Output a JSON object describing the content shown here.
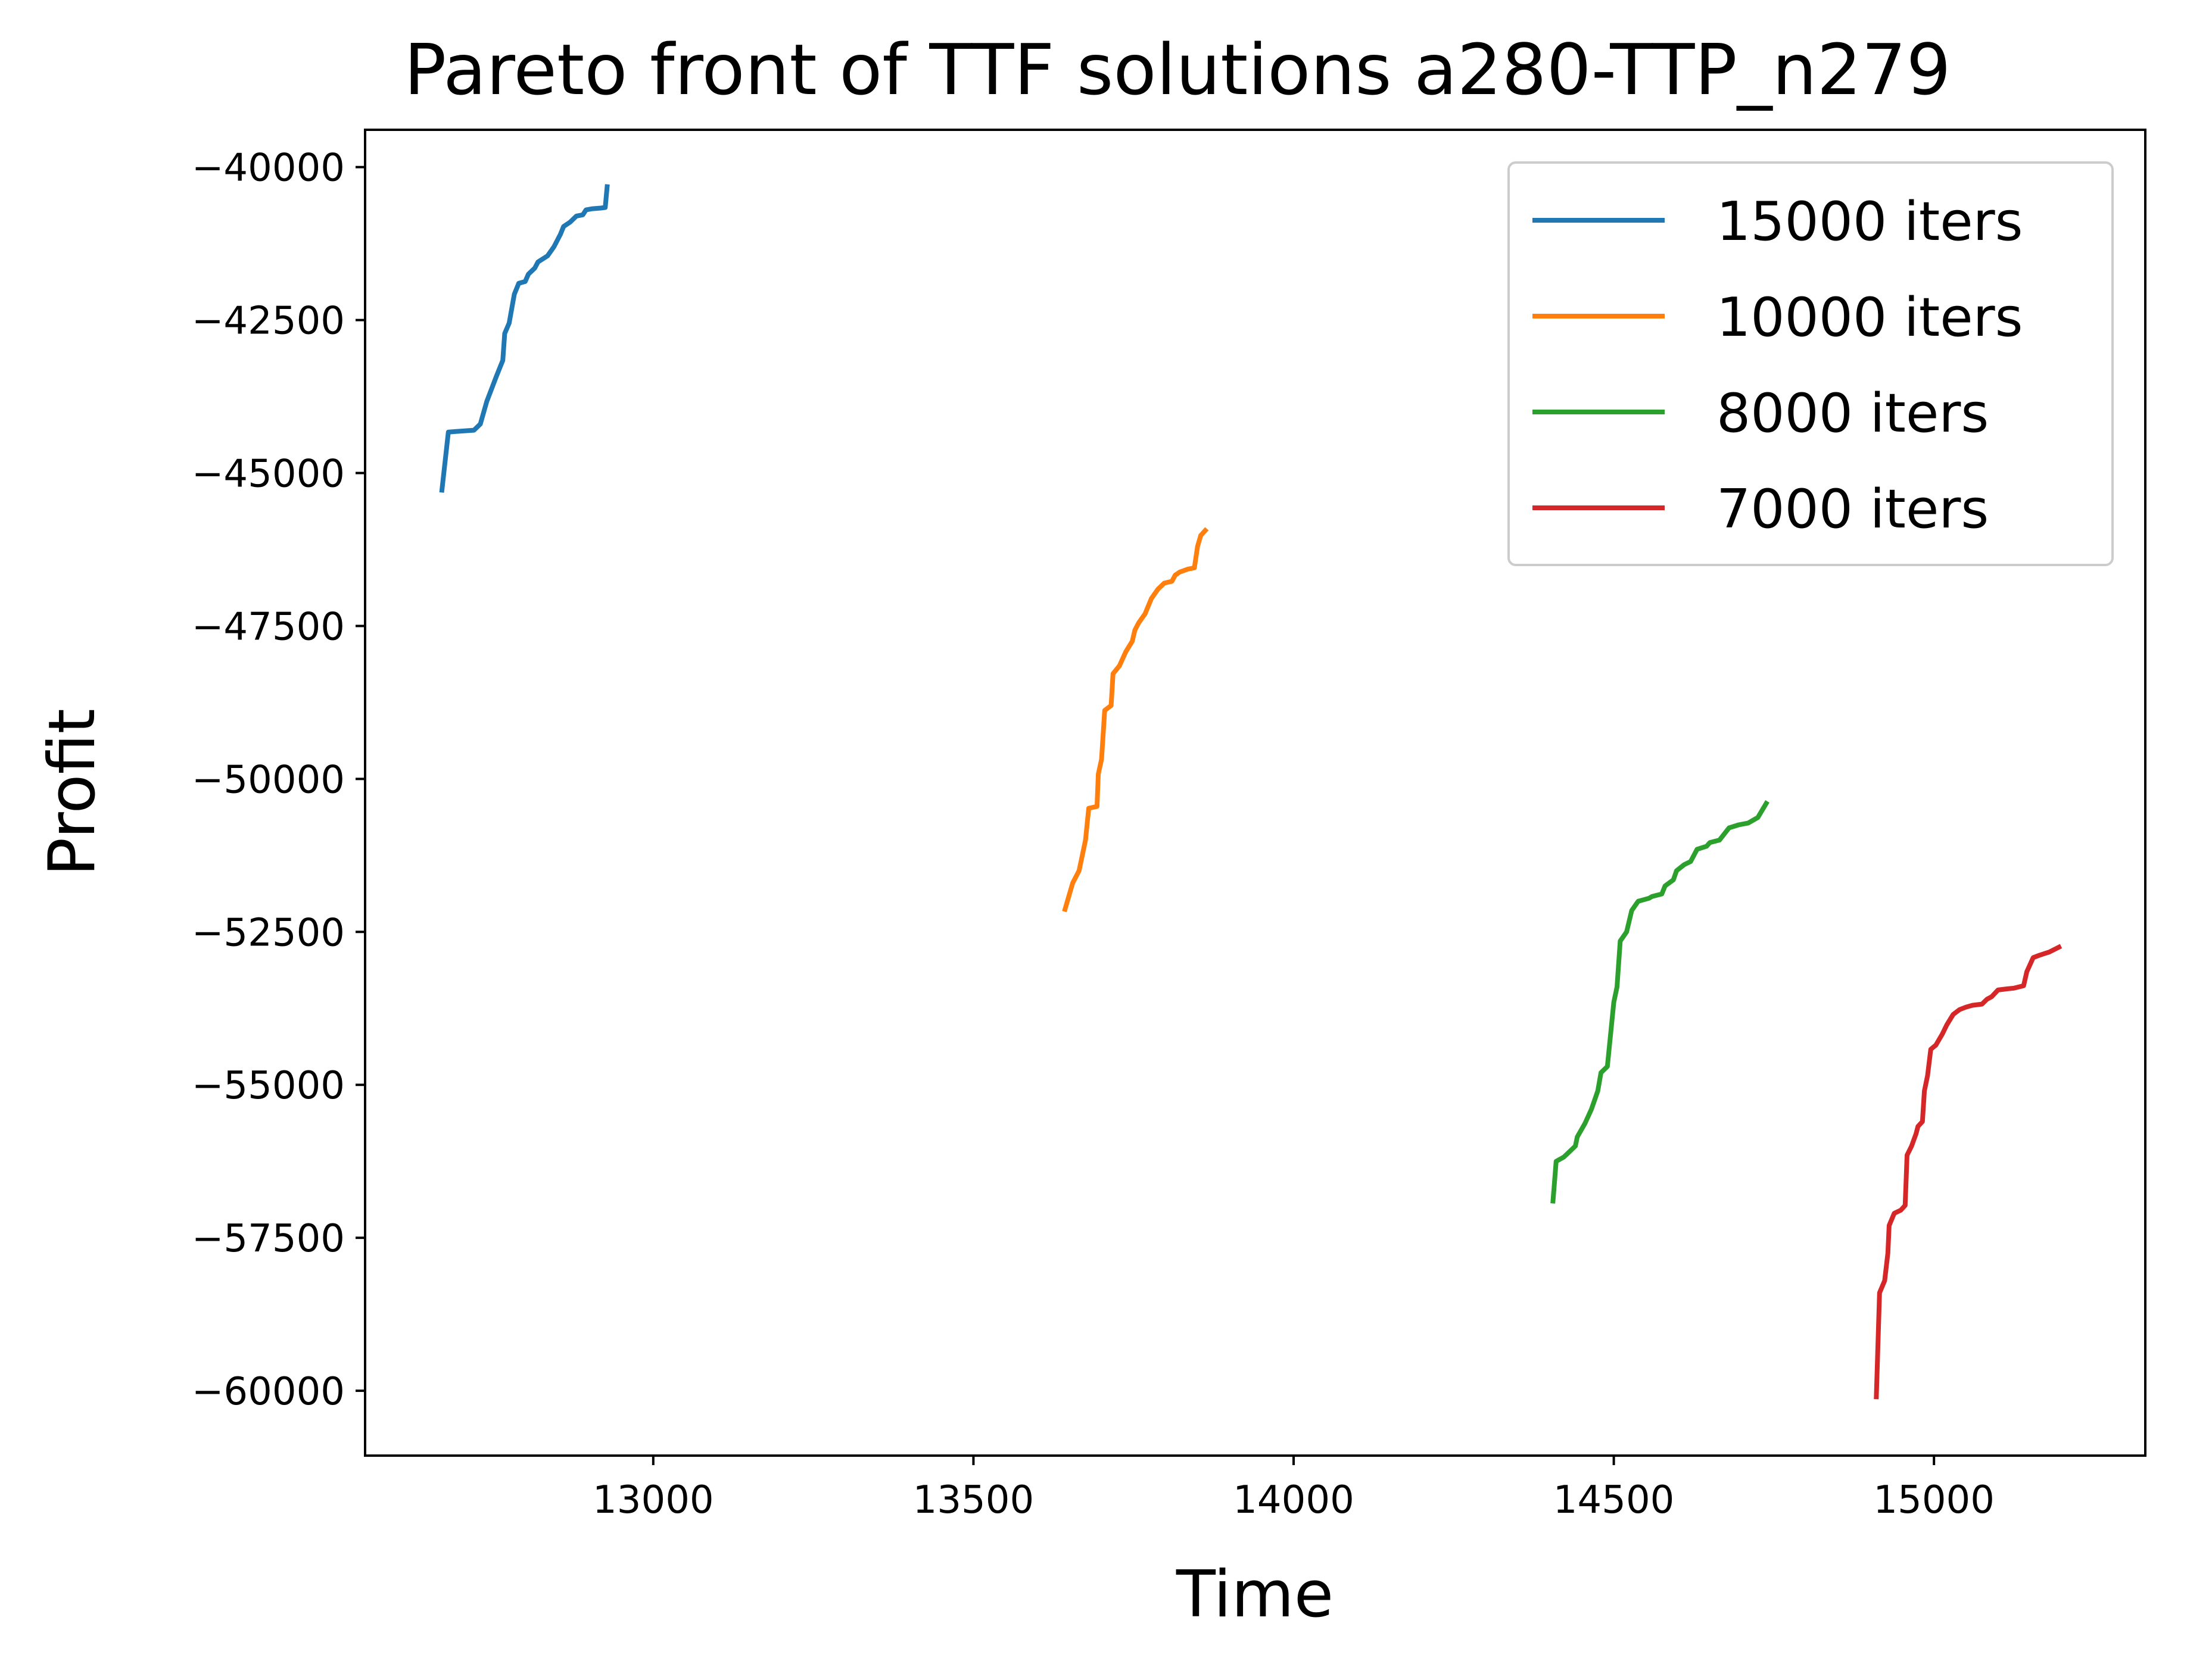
{
  "chart_data": {
    "type": "line",
    "title": "Pareto front of TTF solutions a280-TTP_n279",
    "xlabel": "Time",
    "ylabel": "Profit",
    "xlim": [
      12550,
      15330
    ],
    "ylim": [
      -61060,
      -39390
    ],
    "xticks": [
      13000,
      13500,
      14000,
      14500,
      15000
    ],
    "yticks": [
      -40000,
      -42500,
      -45000,
      -47500,
      -50000,
      -52500,
      -55000,
      -57500,
      -60000
    ],
    "grid": false,
    "legend_position": "top-right",
    "series": [
      {
        "name": "15000 iters",
        "color": "#1f77b4",
        "points": [
          [
            12670,
            -45280
          ],
          [
            12680,
            -44330
          ],
          [
            12720,
            -44300
          ],
          [
            12730,
            -44200
          ],
          [
            12740,
            -43830
          ],
          [
            12755,
            -43420
          ],
          [
            12765,
            -43160
          ],
          [
            12768,
            -42720
          ],
          [
            12775,
            -42550
          ],
          [
            12783,
            -42080
          ],
          [
            12790,
            -41900
          ],
          [
            12800,
            -41870
          ],
          [
            12805,
            -41750
          ],
          [
            12815,
            -41650
          ],
          [
            12820,
            -41550
          ],
          [
            12835,
            -41450
          ],
          [
            12845,
            -41300
          ],
          [
            12855,
            -41100
          ],
          [
            12860,
            -40970
          ],
          [
            12870,
            -40900
          ],
          [
            12880,
            -40800
          ],
          [
            12890,
            -40780
          ],
          [
            12895,
            -40700
          ],
          [
            12905,
            -40680
          ],
          [
            12918,
            -40670
          ],
          [
            12925,
            -40660
          ],
          [
            12928,
            -40320
          ]
        ]
      },
      {
        "name": "10000 iters",
        "color": "#ff7f0e",
        "points": [
          [
            13643,
            -52130
          ],
          [
            13655,
            -51700
          ],
          [
            13665,
            -51500
          ],
          [
            13675,
            -51000
          ],
          [
            13680,
            -50480
          ],
          [
            13693,
            -50450
          ],
          [
            13695,
            -49920
          ],
          [
            13700,
            -49680
          ],
          [
            13705,
            -48880
          ],
          [
            13715,
            -48800
          ],
          [
            13718,
            -48280
          ],
          [
            13728,
            -48150
          ],
          [
            13738,
            -47920
          ],
          [
            13748,
            -47750
          ],
          [
            13752,
            -47570
          ],
          [
            13758,
            -47450
          ],
          [
            13768,
            -47300
          ],
          [
            13778,
            -47050
          ],
          [
            13788,
            -46900
          ],
          [
            13798,
            -46800
          ],
          [
            13810,
            -46770
          ],
          [
            13815,
            -46670
          ],
          [
            13822,
            -46620
          ],
          [
            13835,
            -46570
          ],
          [
            13845,
            -46550
          ],
          [
            13850,
            -46200
          ],
          [
            13855,
            -46020
          ],
          [
            13862,
            -45940
          ]
        ]
      },
      {
        "name": "8000 iters",
        "color": "#2ca02c",
        "points": [
          [
            14405,
            -56900
          ],
          [
            14410,
            -56250
          ],
          [
            14422,
            -56180
          ],
          [
            14440,
            -56000
          ],
          [
            14443,
            -55850
          ],
          [
            14455,
            -55630
          ],
          [
            14465,
            -55400
          ],
          [
            14475,
            -55100
          ],
          [
            14480,
            -54800
          ],
          [
            14490,
            -54700
          ],
          [
            14500,
            -53650
          ],
          [
            14505,
            -53400
          ],
          [
            14510,
            -52650
          ],
          [
            14520,
            -52500
          ],
          [
            14528,
            -52150
          ],
          [
            14538,
            -52000
          ],
          [
            14555,
            -51950
          ],
          [
            14560,
            -51920
          ],
          [
            14575,
            -51880
          ],
          [
            14580,
            -51750
          ],
          [
            14593,
            -51650
          ],
          [
            14598,
            -51500
          ],
          [
            14610,
            -51400
          ],
          [
            14620,
            -51350
          ],
          [
            14630,
            -51150
          ],
          [
            14645,
            -51100
          ],
          [
            14650,
            -51040
          ],
          [
            14665,
            -51000
          ],
          [
            14680,
            -50800
          ],
          [
            14695,
            -50750
          ],
          [
            14710,
            -50720
          ],
          [
            14725,
            -50630
          ],
          [
            14738,
            -50400
          ]
        ]
      },
      {
        "name": "7000 iters",
        "color": "#d62728",
        "points": [
          [
            14910,
            -60100
          ],
          [
            14915,
            -58400
          ],
          [
            14923,
            -58200
          ],
          [
            14928,
            -57750
          ],
          [
            14930,
            -57300
          ],
          [
            14938,
            -57100
          ],
          [
            14948,
            -57050
          ],
          [
            14955,
            -56970
          ],
          [
            14958,
            -56150
          ],
          [
            14965,
            -56000
          ],
          [
            14972,
            -55800
          ],
          [
            14975,
            -55680
          ],
          [
            14982,
            -55600
          ],
          [
            14985,
            -55100
          ],
          [
            14990,
            -54850
          ],
          [
            14995,
            -54420
          ],
          [
            15003,
            -54350
          ],
          [
            15013,
            -54170
          ],
          [
            15020,
            -54020
          ],
          [
            15030,
            -53850
          ],
          [
            15040,
            -53770
          ],
          [
            15050,
            -53730
          ],
          [
            15060,
            -53700
          ],
          [
            15075,
            -53680
          ],
          [
            15083,
            -53600
          ],
          [
            15090,
            -53560
          ],
          [
            15100,
            -53450
          ],
          [
            15115,
            -53430
          ],
          [
            15125,
            -53420
          ],
          [
            15140,
            -53380
          ],
          [
            15145,
            -53150
          ],
          [
            15155,
            -52920
          ],
          [
            15165,
            -52880
          ],
          [
            15180,
            -52830
          ],
          [
            15195,
            -52750
          ]
        ]
      }
    ]
  }
}
